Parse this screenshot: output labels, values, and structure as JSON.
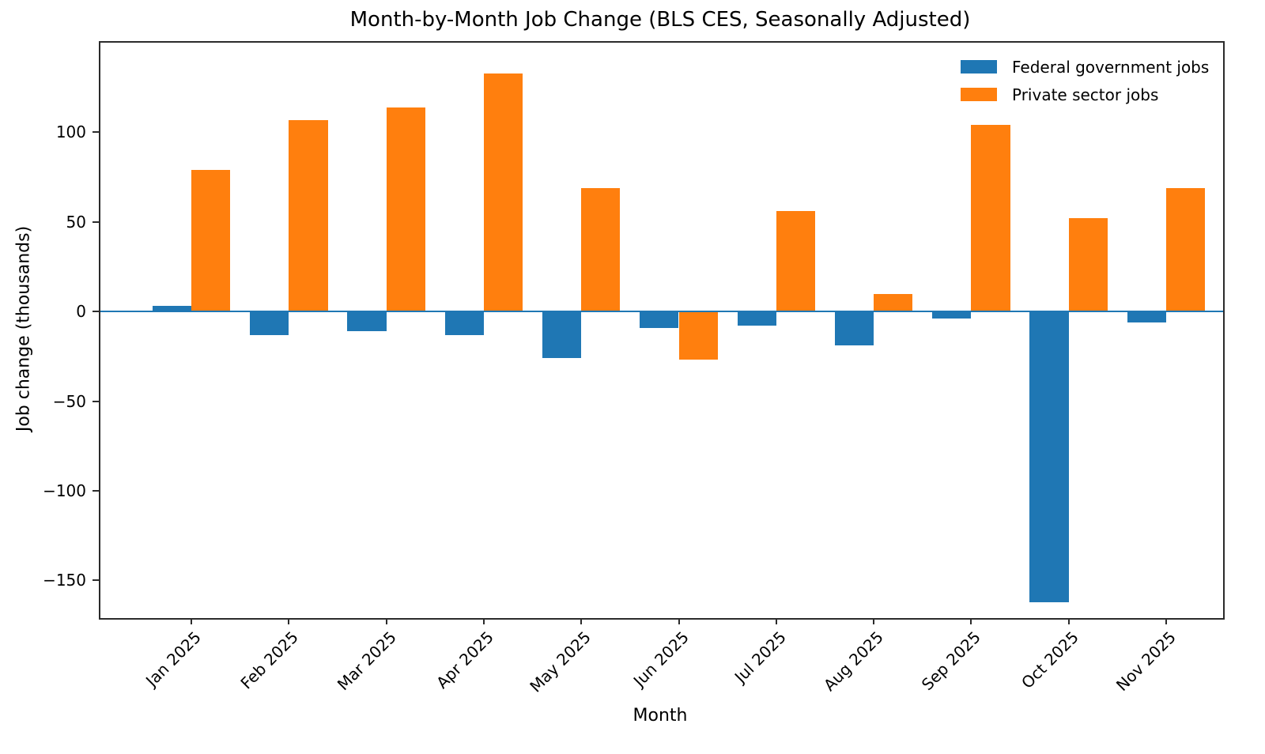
{
  "chart_data": {
    "type": "bar",
    "title": "Month-by-Month Job Change (BLS CES, Seasonally Adjusted)",
    "xlabel": "Month",
    "ylabel": "Job change (thousands)",
    "categories": [
      "Jan 2025",
      "Feb 2025",
      "Mar 2025",
      "Apr 2025",
      "May 2025",
      "Jun 2025",
      "Jul 2025",
      "Aug 2025",
      "Sep 2025",
      "Oct 2025",
      "Nov 2025"
    ],
    "series": [
      {
        "name": "Federal government jobs",
        "color": "#1f77b4",
        "values": [
          3,
          -13,
          -11,
          -13,
          -26,
          -9,
          -8,
          -19,
          -4,
          -162,
          -6
        ]
      },
      {
        "name": "Private sector jobs",
        "color": "#ff7f0e",
        "values": [
          79,
          107,
          114,
          133,
          69,
          -27,
          56,
          10,
          104,
          52,
          69
        ]
      }
    ],
    "ylim": [
      -171,
      150
    ],
    "y_ticks": [
      100,
      50,
      0,
      -50,
      -100,
      -150
    ],
    "y_tick_labels": [
      "100",
      "50",
      "0",
      "−50",
      "−100",
      "−150"
    ],
    "grid": false,
    "legend_position": "upper right",
    "zero_line_color": "#1f77b4"
  }
}
